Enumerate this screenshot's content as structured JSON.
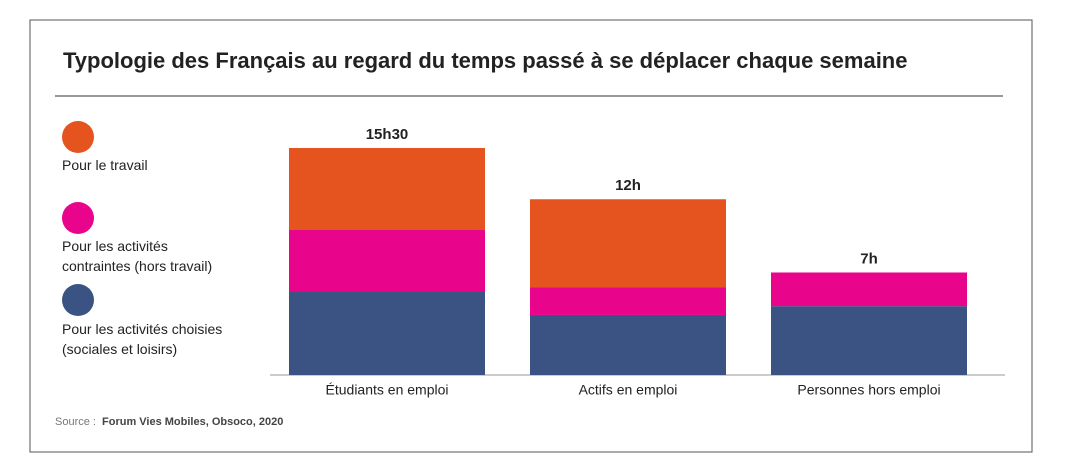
{
  "chart_data": {
    "type": "stacked_bar",
    "title": "Typologie des Français au regard du temps passé à se déplacer chaque semaine",
    "categories": [
      "Étudiants en emploi",
      "Actifs en emploi",
      "Personnes hors emploi"
    ],
    "series": [
      {
        "name": "Pour les activités choisies\n(sociales et loisirs)",
        "color": "#3a5382",
        "values": [
          5.7,
          4.1,
          4.7
        ]
      },
      {
        "name": "Pour les activités\ncontraintes (hors travail)",
        "color": "#e8048b",
        "values": [
          4.2,
          1.9,
          2.3
        ]
      },
      {
        "name": "Pour le travail",
        "color": "#e5531f",
        "values": [
          5.6,
          6.0,
          0
        ]
      }
    ],
    "totals": [
      15.5,
      12,
      7
    ],
    "total_labels": [
      "15h30",
      "12h",
      "7h"
    ],
    "source": {
      "label": "Source :",
      "text": "Forum Vies Mobiles, Obsoco, 2020"
    }
  }
}
